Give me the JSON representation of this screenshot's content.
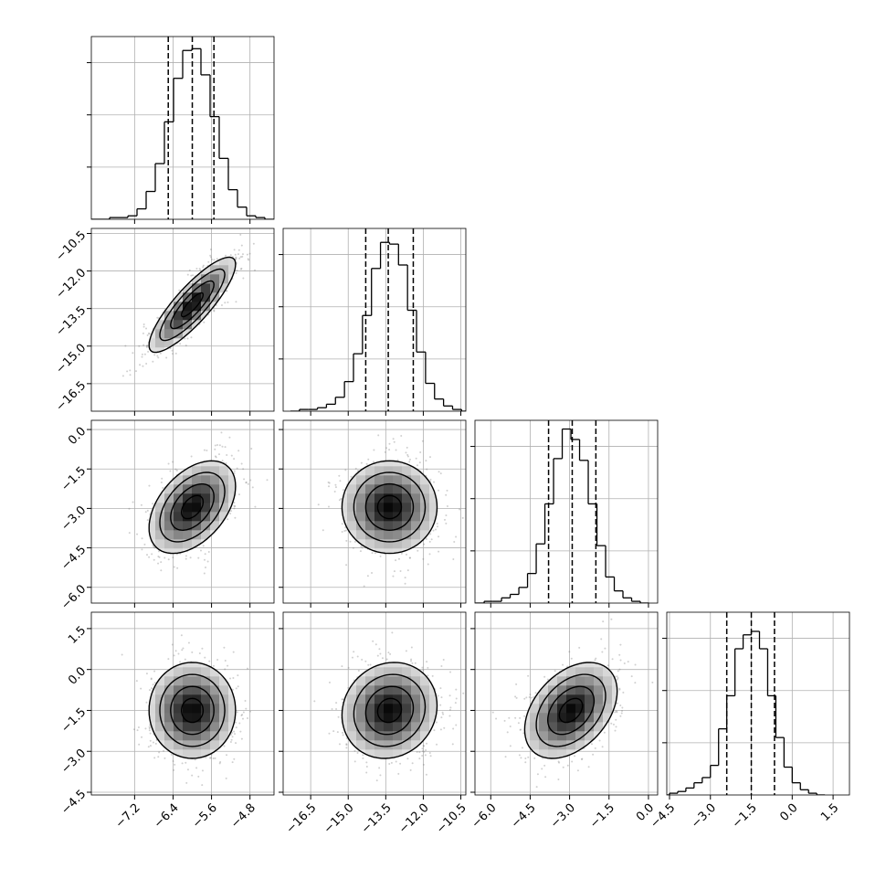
{
  "chart_data": {
    "type": "corner",
    "hist_ylim": [
      0,
      105
    ],
    "hist_yticks": [
      30,
      60,
      90
    ],
    "correlations": [
      0.85,
      0.45,
      0.0,
      0.0,
      0.1,
      0.4
    ],
    "params": [
      {
        "mean": -6.0,
        "sd": 0.45,
        "lim": [
          -8.1,
          -4.3
        ],
        "ticks": [
          {
            "value": -7.2,
            "label": "−7.2"
          },
          {
            "value": -6.4,
            "label": "−6.4"
          },
          {
            "value": -5.6,
            "label": "−5.6"
          },
          {
            "value": -4.8,
            "label": "−4.8"
          }
        ],
        "bins": [
          -8.1,
          -7.91,
          -7.72,
          -7.53,
          -7.34,
          -7.15,
          -6.96,
          -6.77,
          -6.58,
          -6.39,
          -6.2,
          -6.01,
          -5.82,
          -5.63,
          -5.44,
          -5.25,
          -5.06,
          -4.87,
          -4.68,
          -4.49,
          -4.3
        ],
        "counts": [
          0,
          0,
          1,
          1,
          2,
          6,
          16,
          32,
          56,
          81,
          97,
          98,
          83,
          59,
          35,
          17,
          7,
          2,
          1,
          0
        ],
        "quantiles": [
          -6.5,
          -6.0,
          -5.55
        ]
      },
      {
        "mean": -13.35,
        "sd": 0.95,
        "lim": [
          -17.6,
          -10.3
        ],
        "ticks": [
          {
            "value": -16.5,
            "label": "−16.5"
          },
          {
            "value": -15.0,
            "label": "−15.0"
          },
          {
            "value": -13.5,
            "label": "−13.5"
          },
          {
            "value": -12.0,
            "label": "−12.0"
          },
          {
            "value": -10.5,
            "label": "−10.5"
          }
        ],
        "bins": [
          -17.31,
          -16.95,
          -16.59,
          -16.23,
          -15.87,
          -15.51,
          -15.15,
          -14.79,
          -14.43,
          -14.07,
          -13.71,
          -13.35,
          -12.99,
          -12.63,
          -12.27,
          -11.91,
          -11.55,
          -11.19,
          -10.83,
          -10.47,
          -10.11
        ],
        "counts": [
          0,
          1,
          1,
          2,
          4,
          8,
          17,
          33,
          55,
          82,
          97,
          96,
          84,
          58,
          34,
          16,
          7,
          3,
          1,
          0
        ],
        "quantiles": [
          -14.3,
          -13.4,
          -12.4
        ]
      },
      {
        "mean": -2.95,
        "sd": 0.88,
        "lim": [
          -6.6,
          0.35
        ],
        "ticks": [
          {
            "value": -6.0,
            "label": "−6.0"
          },
          {
            "value": -4.5,
            "label": "−4.5"
          },
          {
            "value": -3.0,
            "label": "−3.0"
          },
          {
            "value": -1.5,
            "label": "−1.5"
          },
          {
            "value": 0,
            "label": "0.0"
          }
        ],
        "bins": [
          -6.58,
          -6.25,
          -5.92,
          -5.59,
          -5.26,
          -4.93,
          -4.6,
          -4.27,
          -3.94,
          -3.61,
          -3.28,
          -2.95,
          -2.62,
          -2.29,
          -1.96,
          -1.63,
          -1.3,
          -0.97,
          -0.64,
          -0.31,
          0.02
        ],
        "counts": [
          0,
          1,
          1,
          3,
          5,
          9,
          17,
          34,
          57,
          83,
          100,
          94,
          82,
          57,
          33,
          15,
          7,
          3,
          1,
          0
        ],
        "quantiles": [
          -3.8,
          -2.9,
          -2.0
        ]
      },
      {
        "mean": -1.5,
        "sd": 0.88,
        "lim": [
          -4.6,
          2.1
        ],
        "ticks": [
          {
            "value": -4.5,
            "label": "−4.5"
          },
          {
            "value": -3.0,
            "label": "−3.0"
          },
          {
            "value": -1.5,
            "label": "−1.5"
          },
          {
            "value": 0,
            "label": "0.0"
          },
          1.5
        ],
        "bins": [
          -4.8,
          -4.5,
          -4.2,
          -3.9,
          -3.6,
          -3.3,
          -3.0,
          -2.7,
          -2.4,
          -2.1,
          -1.8,
          -1.5,
          -1.2,
          -0.9,
          -0.6,
          -0.3,
          0.0,
          0.3,
          0.6,
          0.9,
          1.2
        ],
        "counts": [
          0,
          1,
          2,
          4,
          7,
          10,
          17,
          38,
          57,
          84,
          92,
          94,
          84,
          57,
          33,
          16,
          7,
          3,
          1,
          0
        ],
        "quantiles": [
          -2.4,
          -1.5,
          -0.65
        ]
      }
    ]
  }
}
